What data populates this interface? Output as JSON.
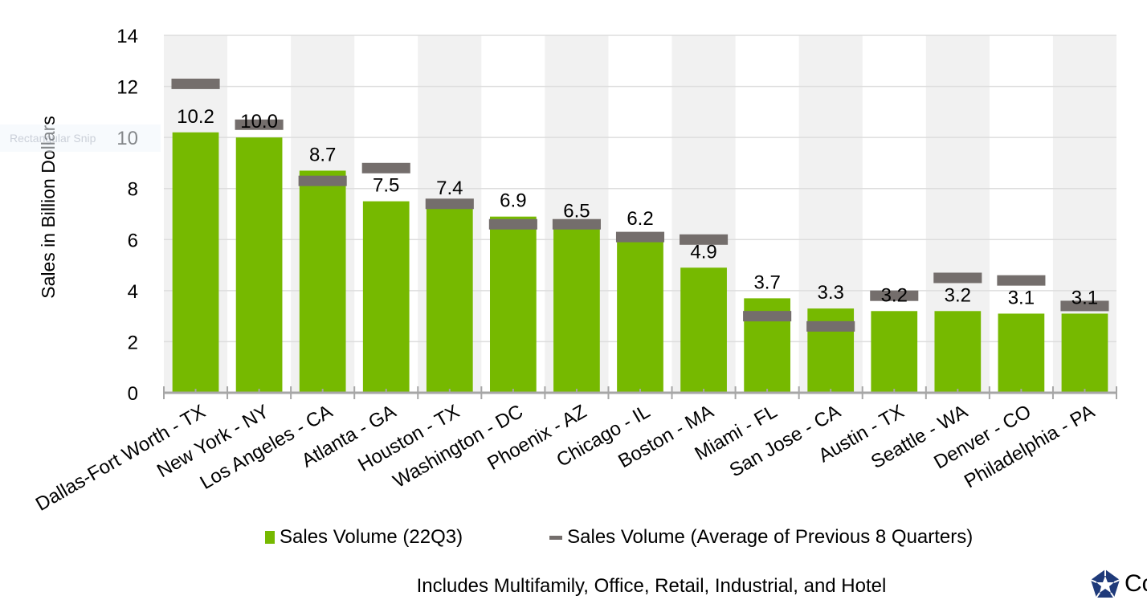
{
  "overlay": {
    "snip_tooltip": "Rectangular Snip"
  },
  "chart_data": {
    "type": "bar",
    "title": "",
    "xlabel": "",
    "ylabel": "Sales in Billion Dollars",
    "ylim": [
      0,
      14
    ],
    "yticks": [
      0,
      2,
      4,
      6,
      8,
      10,
      12,
      14
    ],
    "grid": true,
    "alternating_bands": true,
    "legend_position": "bottom",
    "categories": [
      "Dallas-Fort Worth - TX",
      "New York - NY",
      "Los Angeles - CA",
      "Atlanta - GA",
      "Houston - TX",
      "Washington - DC",
      "Phoenix - AZ",
      "Chicago - IL",
      "Boston - MA",
      "Miami - FL",
      "San Jose - CA",
      "Austin - TX",
      "Seattle - WA",
      "Denver - CO",
      "Philadelphia - PA"
    ],
    "series": [
      {
        "name": "Sales Volume (22Q3)",
        "kind": "bar",
        "color": "#76b900",
        "values": [
          10.2,
          10.0,
          8.7,
          7.5,
          7.4,
          6.9,
          6.5,
          6.2,
          4.9,
          3.7,
          3.3,
          3.2,
          3.2,
          3.1,
          3.1
        ],
        "labels": [
          "10.2",
          "10.0",
          "8.7",
          "7.5",
          "7.4",
          "6.9",
          "6.5",
          "6.2",
          "4.9",
          "3.7",
          "3.3",
          "3.2",
          "3.2",
          "3.1",
          "3.1"
        ]
      },
      {
        "name": "Sales Volume (Average of Previous 8 Quarters)",
        "kind": "marker",
        "color": "#746e6c",
        "values": [
          12.1,
          10.5,
          8.3,
          8.8,
          7.4,
          6.6,
          6.6,
          6.1,
          6.0,
          3.0,
          2.6,
          3.8,
          4.5,
          4.4,
          3.4
        ]
      }
    ],
    "footnote": "Includes Multifamily, Office, Retail, Industrial, and Hotel"
  },
  "legend": {
    "bar_label": "Sales Volume (22Q3)",
    "marker_label": "Sales Volume (Average of Previous 8 Quarters)"
  },
  "footer": {
    "text": "Includes Multifamily, Office, Retail, Industrial, and Hotel"
  },
  "logo": {
    "text": "Co"
  }
}
